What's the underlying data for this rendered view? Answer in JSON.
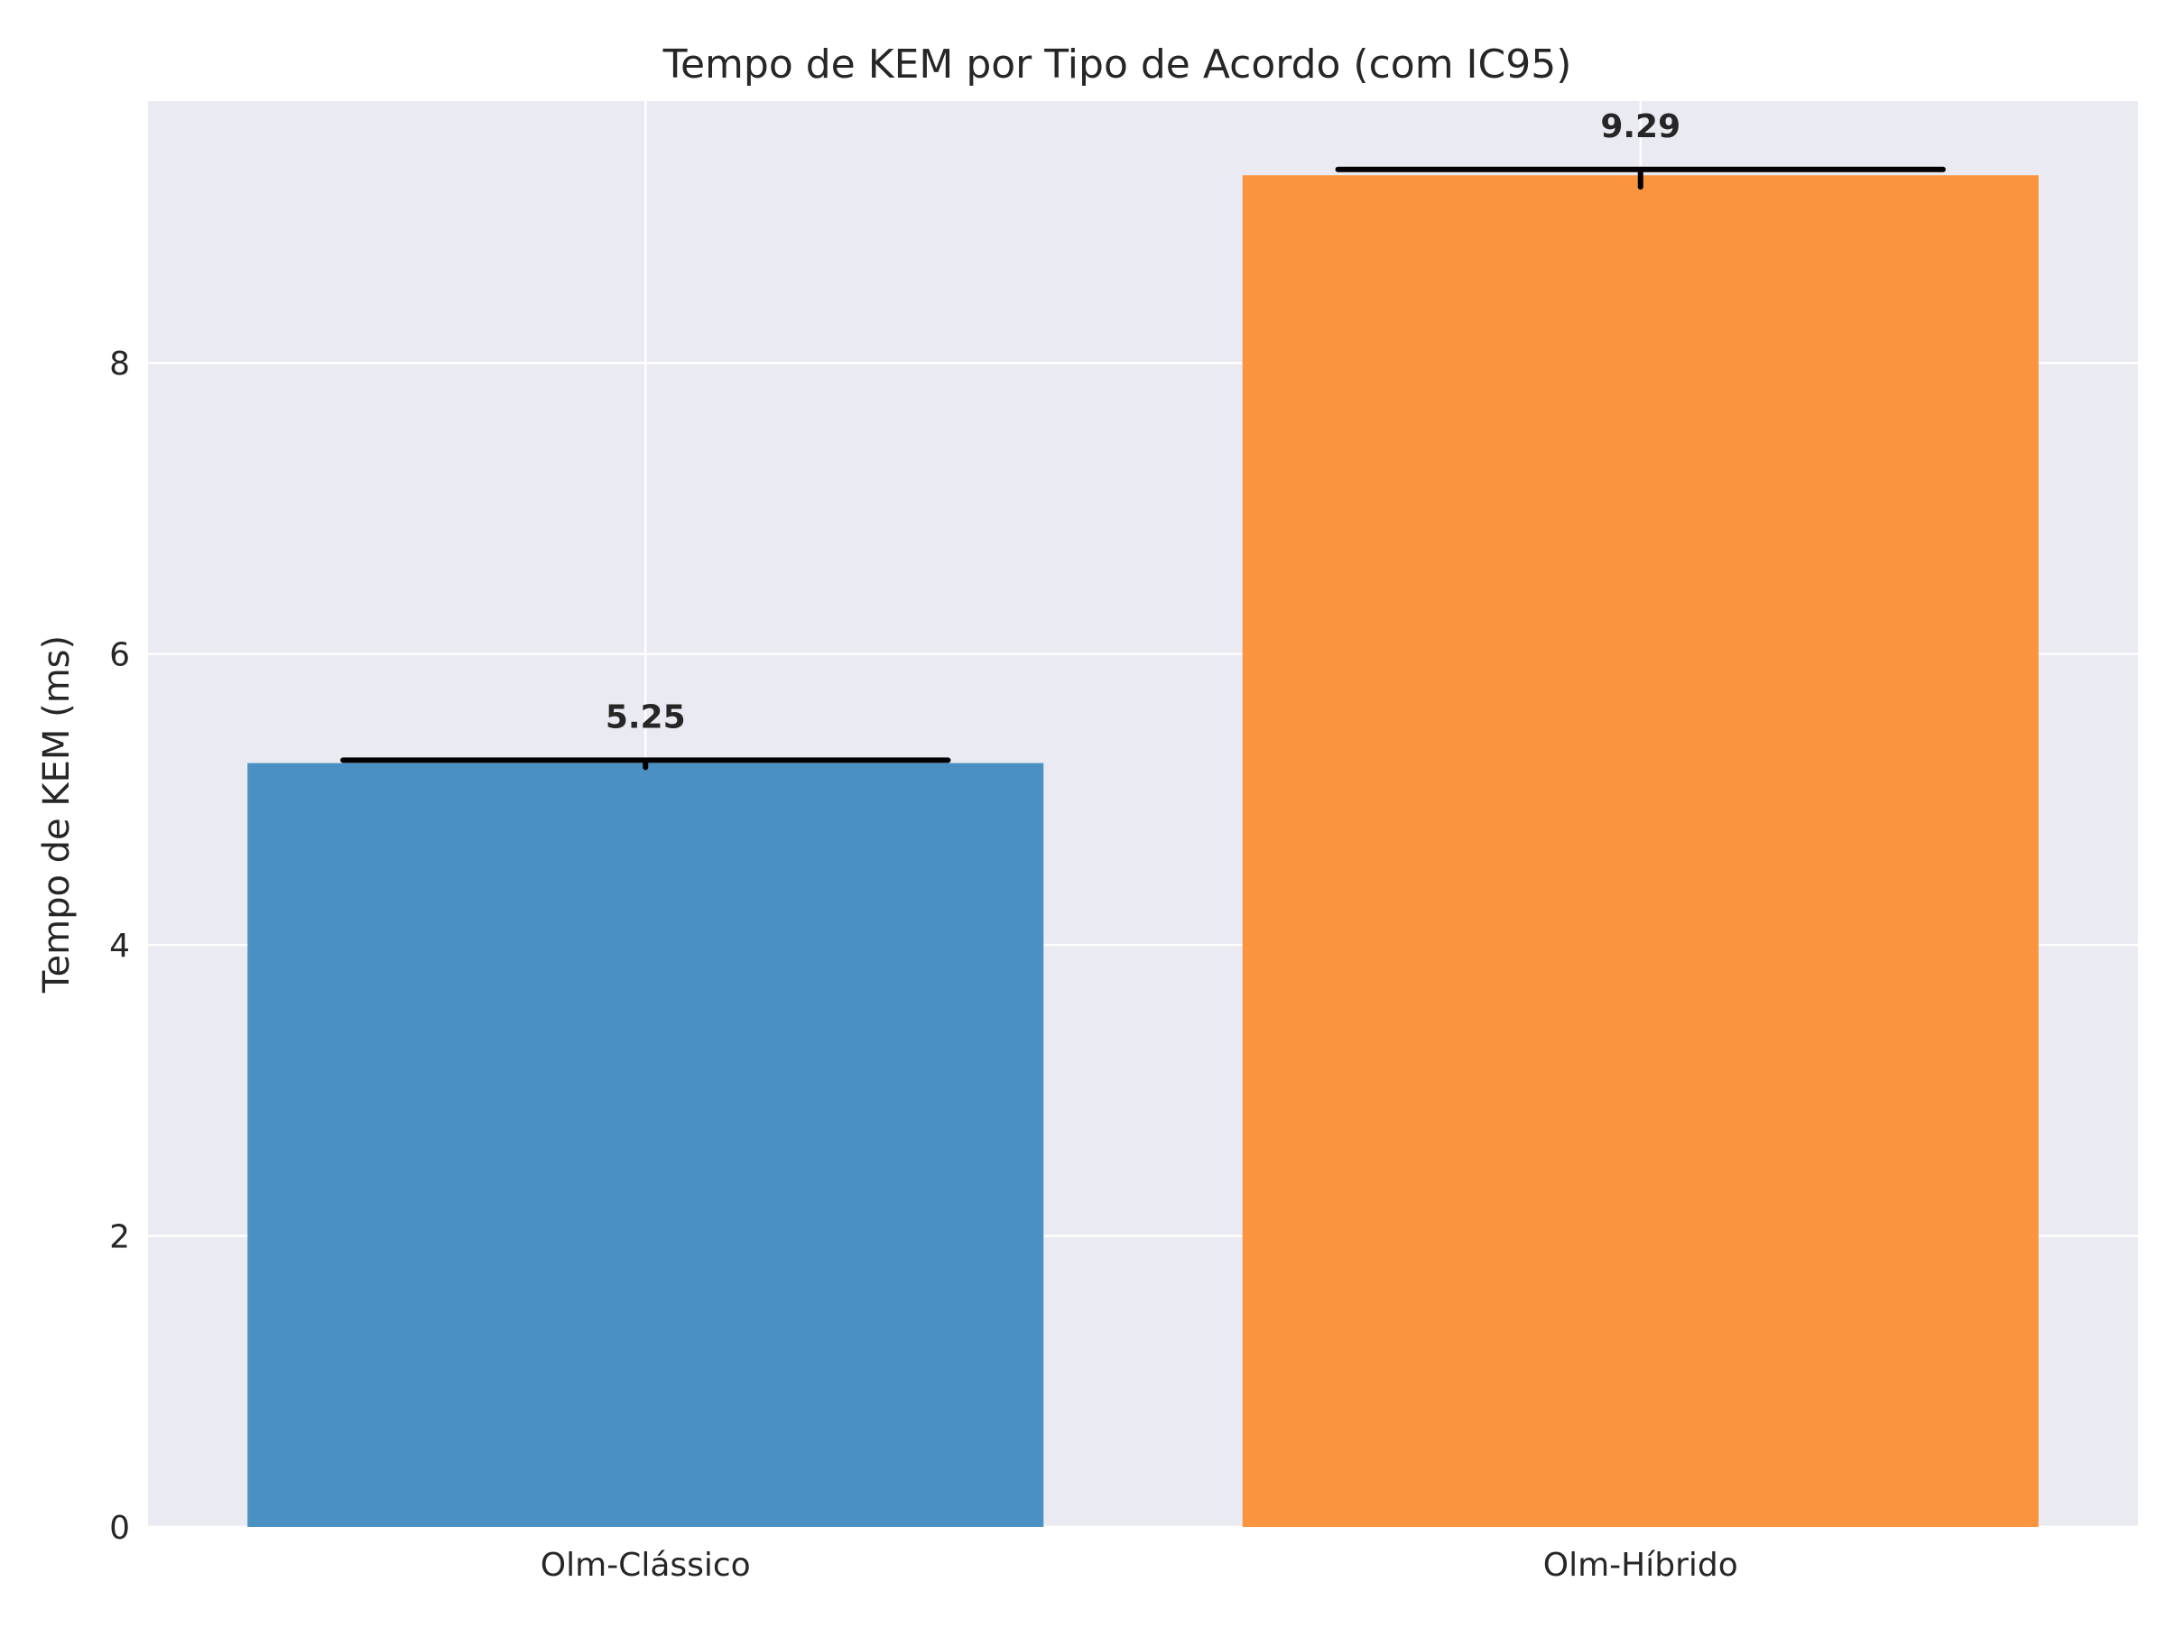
{
  "chart_data": {
    "type": "bar",
    "title": "Tempo de KEM por Tipo de Acordo (com IC95)",
    "xlabel": "",
    "ylabel": "Tempo de KEM (ms)",
    "categories": [
      "Olm-Clássico",
      "Olm-Híbrido"
    ],
    "values": [
      5.25,
      9.29
    ],
    "value_labels": [
      "5.25",
      "9.29"
    ],
    "ci_low": [
      5.22,
      9.21
    ],
    "ci_high": [
      5.27,
      9.33
    ],
    "colors": [
      "#4a90c2",
      "#fb943e"
    ],
    "ylim": [
      0,
      9.8
    ],
    "yticks": [
      0,
      2,
      4,
      6,
      8
    ],
    "grid": true,
    "background": "#eaeaf2",
    "legend": "none"
  }
}
